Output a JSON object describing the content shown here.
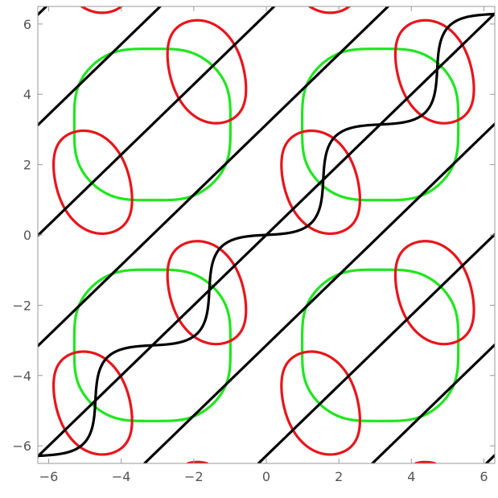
{
  "chart_data": {
    "type": "line",
    "title": "",
    "xlabel": "",
    "ylabel": "",
    "xlim": [
      -6.3,
      6.3
    ],
    "ylim": [
      -6.5,
      6.5
    ],
    "x_ticks": [
      {
        "value": -6,
        "label": "−6"
      },
      {
        "value": -4,
        "label": "−4"
      },
      {
        "value": -2,
        "label": "−2"
      },
      {
        "value": 0,
        "label": "0"
      },
      {
        "value": 2,
        "label": "2"
      },
      {
        "value": 4,
        "label": "4"
      },
      {
        "value": 6,
        "label": "6"
      }
    ],
    "y_ticks": [
      {
        "value": 6,
        "label": "6"
      },
      {
        "value": 4,
        "label": "4"
      },
      {
        "value": 2,
        "label": "2"
      },
      {
        "value": 0,
        "label": "0"
      },
      {
        "value": -2,
        "label": "−2"
      },
      {
        "value": -4,
        "label": "−4"
      },
      {
        "value": -6,
        "label": "−6"
      }
    ],
    "grid": false,
    "legend": "none",
    "colors": {
      "black": "#000000",
      "red": "#e8151b",
      "green": "#1fe61f",
      "axis": "#999999"
    },
    "curve_families": [
      {
        "color": "black",
        "shape": "S-shaped curves crossing at the green/red intersection points"
      },
      {
        "color": "red",
        "shape": "rounded blobs"
      },
      {
        "color": "green",
        "shape": "rounded squares"
      }
    ]
  }
}
